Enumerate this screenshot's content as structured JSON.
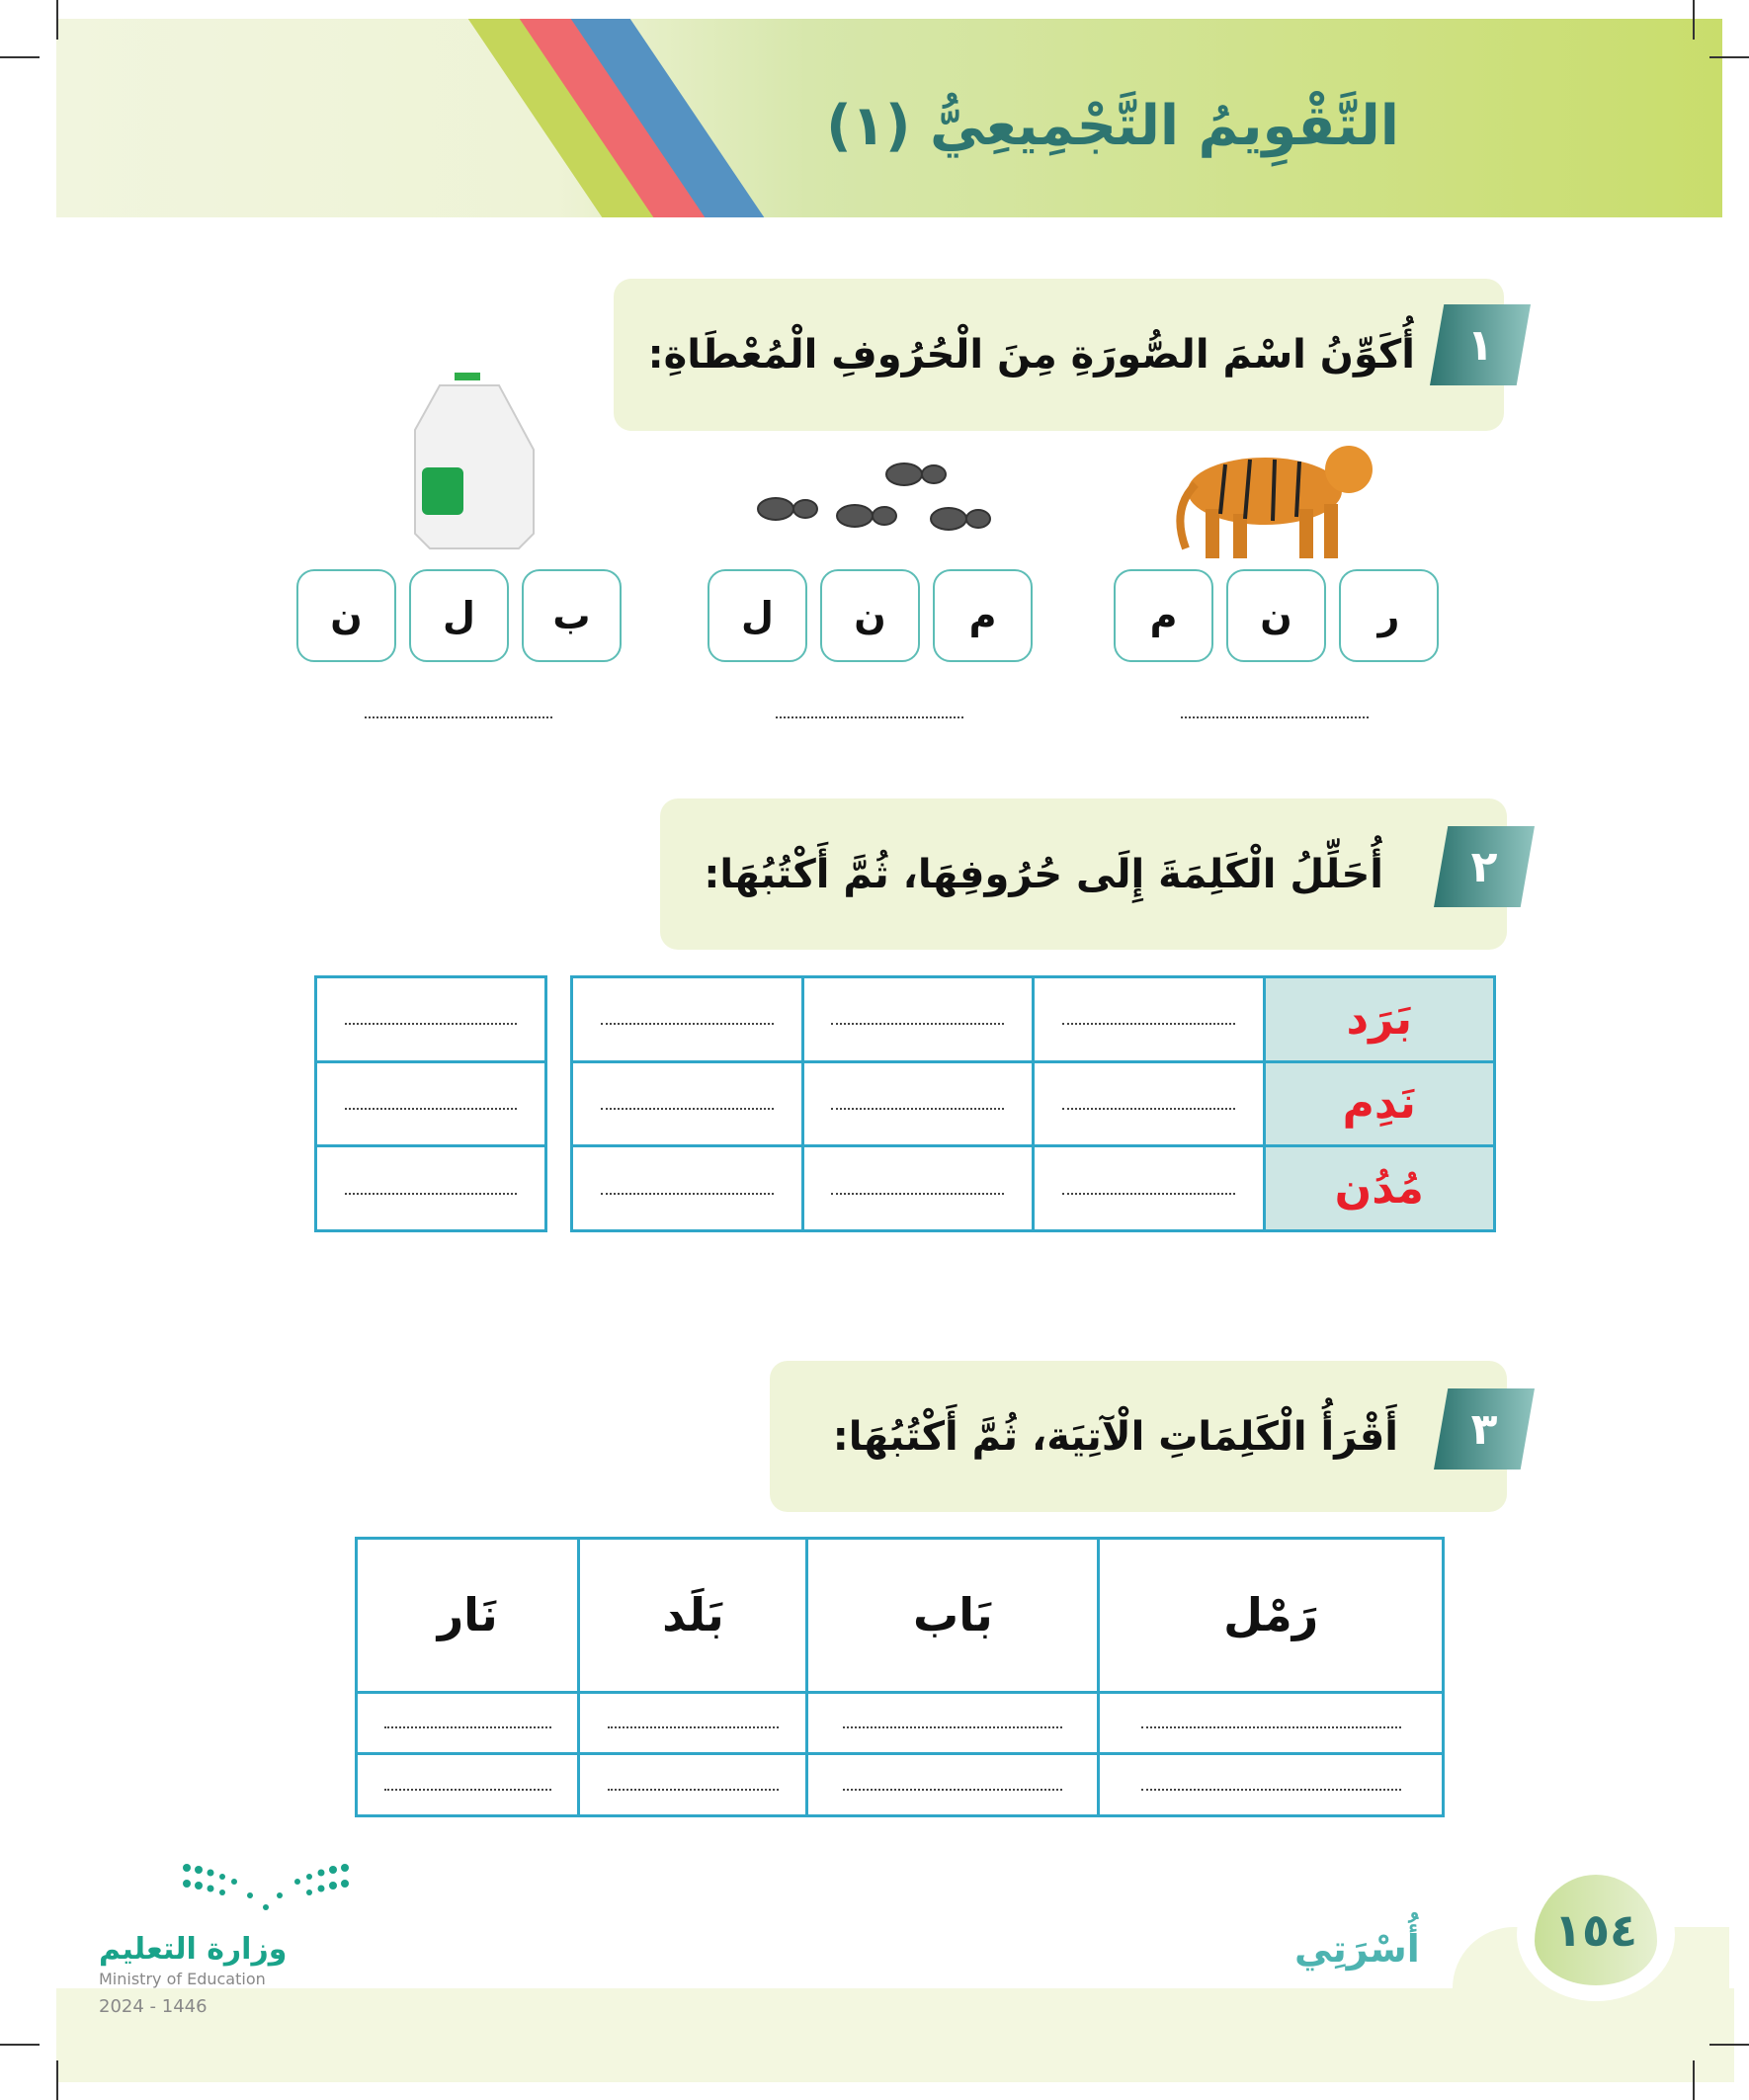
{
  "header": {
    "title": "التَّقْوِيمُ التَّجْمِيعِيُّ (١)"
  },
  "q1": {
    "number": "١",
    "prompt": "أُكَوِّنُ اسْمَ الصُّورَةِ مِنَ الْحُرُوفِ الْمُعْطَاةِ:",
    "groups": [
      {
        "image": "tiger-image",
        "letters": [
          "ر",
          "ن",
          "م"
        ]
      },
      {
        "image": "ants-image",
        "letters": [
          "م",
          "ن",
          "ل"
        ]
      },
      {
        "image": "milk-jug-image",
        "letters": [
          "ب",
          "ل",
          "ن"
        ]
      }
    ]
  },
  "q2": {
    "number": "٢",
    "prompt": "أُحَلِّلُ الْكَلِمَةَ إِلَى حُرُوفِهَا، ثُمَّ أَكْتُبُهَا:",
    "words": [
      "بَرَد",
      "نَدِم",
      "مُدُن"
    ]
  },
  "q3": {
    "number": "٣",
    "prompt": "أَقْرَأُ الْكَلِمَاتِ الْآتِيَة، ثُمَّ أَكْتُبُهَا:",
    "words": [
      "رَمْل",
      "بَاب",
      "بَلَد",
      "نَار"
    ]
  },
  "footer": {
    "page_number": "١٥٤",
    "unit": "أُسْرَتِي",
    "ministry_ar": "وزارة التعليم",
    "ministry_en": "Ministry of Education",
    "year": "2024 - 1446"
  },
  "colors": {
    "title": "#2e7570",
    "word_red": "#e8202a",
    "table_border": "#2fa6c8",
    "band": "#c9dd6c"
  }
}
